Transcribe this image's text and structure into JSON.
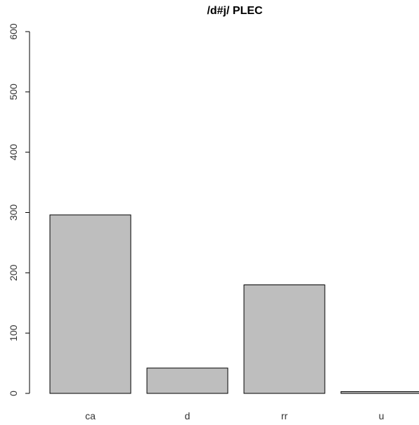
{
  "chart_data": {
    "type": "bar",
    "title": "/d#j/ PLEC",
    "xlabel": "",
    "ylabel": "",
    "categories": [
      "ca",
      "d",
      "rr",
      "u"
    ],
    "values": [
      296,
      42,
      180,
      3
    ],
    "ylim": [
      0,
      600
    ],
    "yticks": [
      "0",
      "100",
      "200",
      "300",
      "400",
      "500",
      "600"
    ],
    "grid": false,
    "legend": "none",
    "colors": {
      "bar_fill": "#bebebe",
      "bar_stroke": "#000000"
    }
  }
}
